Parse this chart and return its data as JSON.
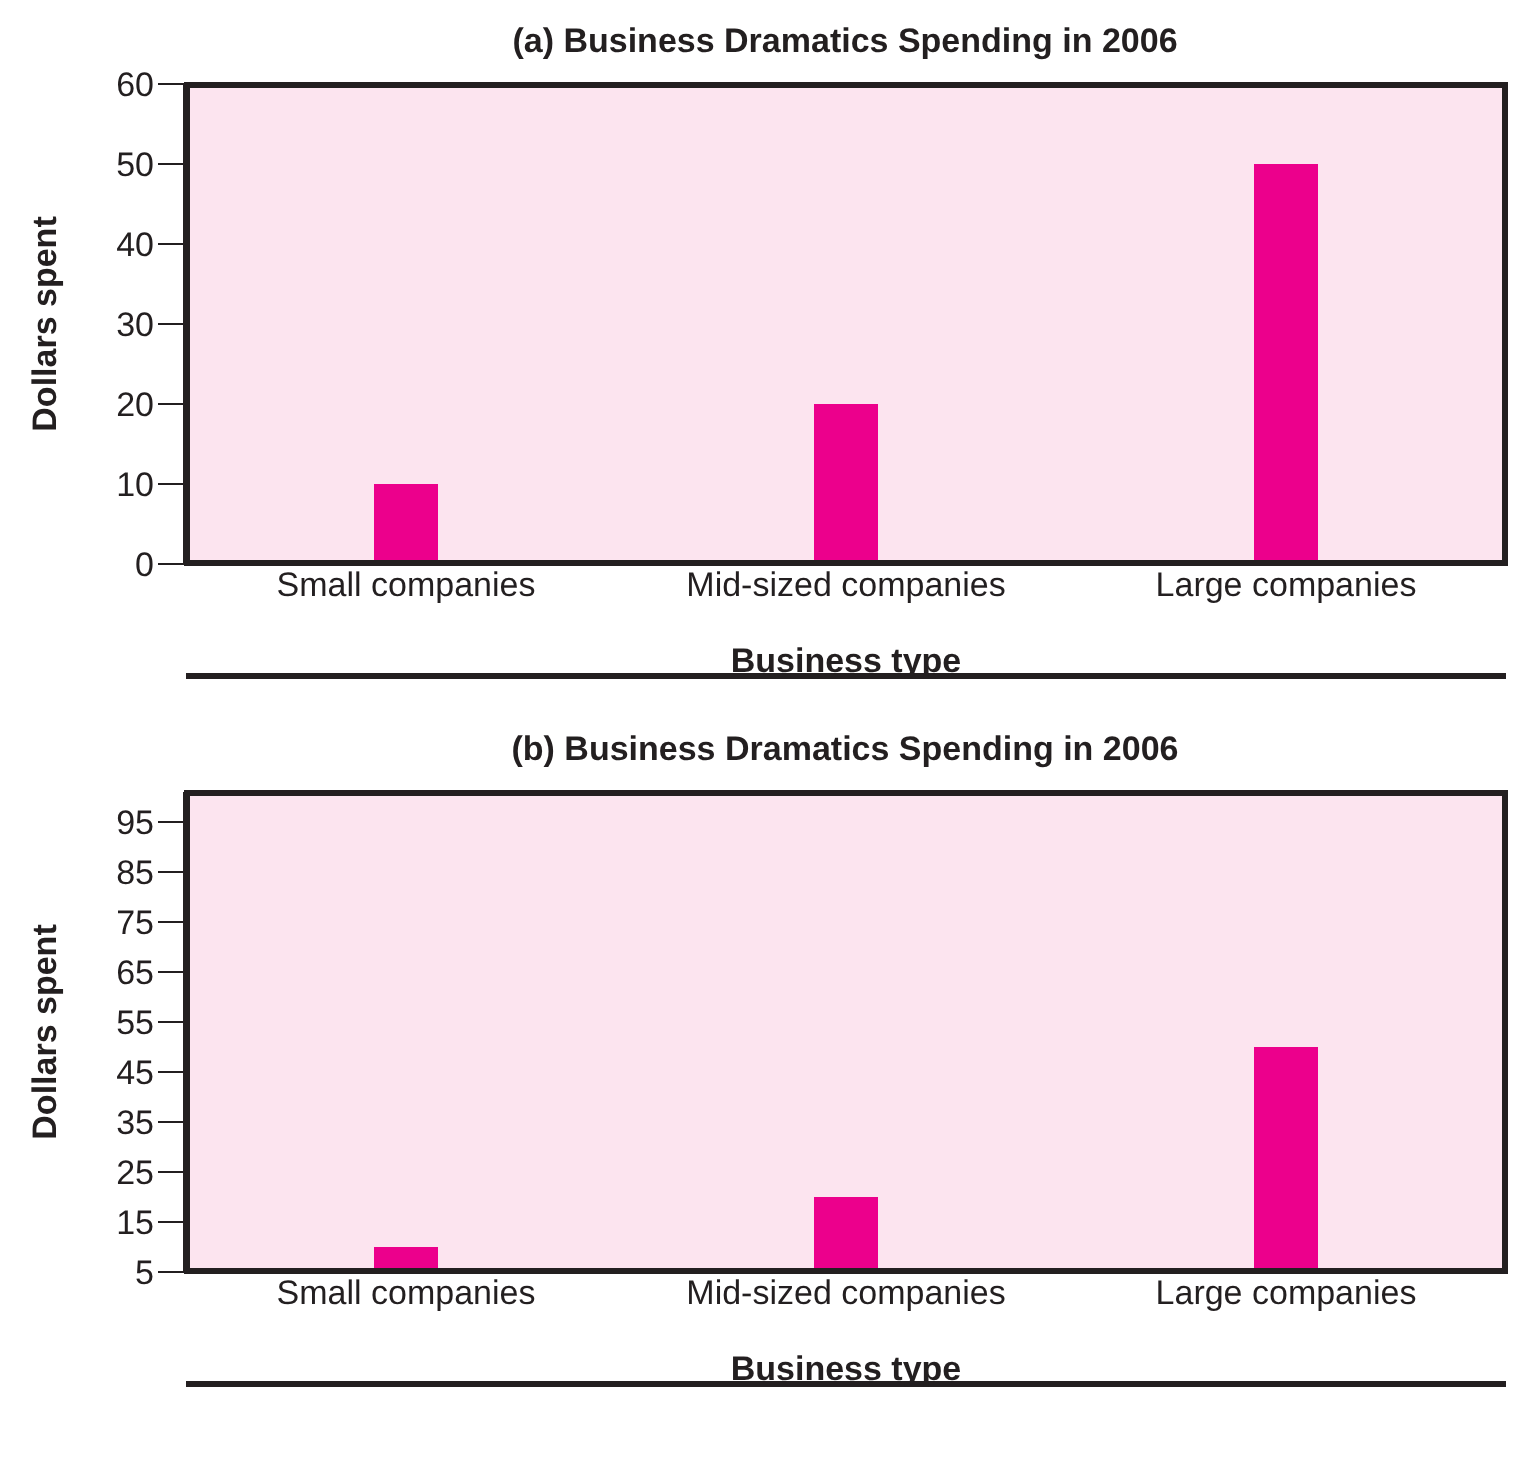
{
  "chart_data": [
    {
      "type": "bar",
      "title": "(a) Business Dramatics Spending in 2006",
      "xlabel": "Business type",
      "ylabel": "Dollars spent",
      "categories": [
        "Small companies",
        "Mid-sized companies",
        "Large companies"
      ],
      "values": [
        10,
        20,
        50
      ],
      "color": "#ec008c",
      "ylim": [
        0,
        60
      ],
      "yticks": [
        0,
        10,
        20,
        30,
        40,
        50,
        60
      ],
      "grid": false,
      "legend": false
    },
    {
      "type": "bar",
      "title": "(b) Business Dramatics Spending in 2006",
      "xlabel": "Business type",
      "ylabel": "Dollars spent",
      "categories": [
        "Small companies",
        "Mid-sized companies",
        "Large companies"
      ],
      "values": [
        10,
        20,
        50
      ],
      "color": "#ec008c",
      "ylim": [
        5,
        101
      ],
      "yticks": [
        5,
        15,
        25,
        35,
        45,
        55,
        65,
        75,
        85,
        95
      ],
      "grid": false,
      "legend": false
    }
  ]
}
